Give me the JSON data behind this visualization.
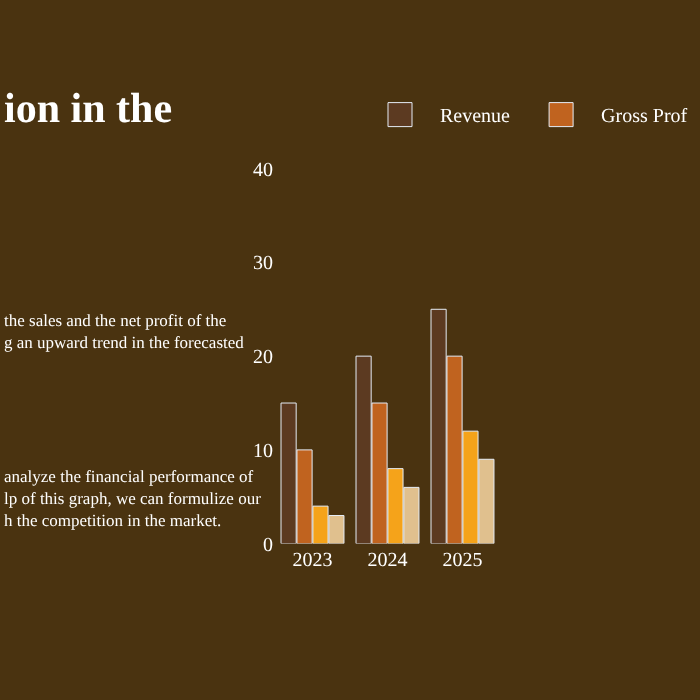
{
  "chart_data": {
    "type": "bar",
    "title": "ion in the",
    "annotations": [
      "the sales and the net profit of the\ng an upward trend in the forecasted",
      "analyze the financial performance of\nlp of this graph, we can formulize our\nh the competition in the market."
    ],
    "categories": [
      "2023",
      "2024",
      "2025"
    ],
    "series": [
      {
        "name": "Revenue",
        "color": "#5c3a21",
        "values": [
          15,
          20,
          25
        ]
      },
      {
        "name": "Gross Prof",
        "color": "#c0631f",
        "values": [
          10,
          15,
          20
        ]
      },
      {
        "color": "#f5a31a",
        "values": [
          4,
          8,
          12
        ]
      },
      {
        "color": "#e0c08e",
        "values": [
          3,
          6,
          9
        ]
      }
    ],
    "ylim": [
      0,
      40
    ],
    "yticks": [
      0,
      10,
      20,
      30,
      40
    ],
    "grid": false,
    "legend": "top"
  }
}
